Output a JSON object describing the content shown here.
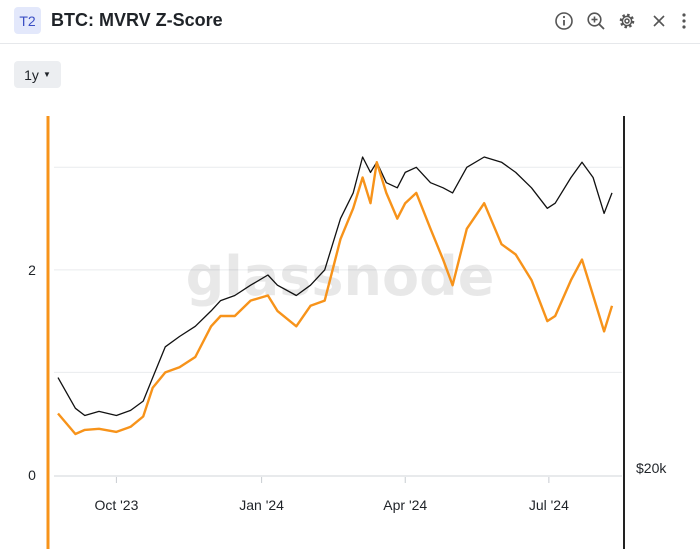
{
  "header": {
    "badge": "T2",
    "title": "BTC: MVRV Z-Score",
    "icons": [
      "info-icon",
      "zoom-in-icon",
      "gear-icon",
      "close-icon",
      "more-vertical-icon"
    ]
  },
  "range": {
    "label": "1y"
  },
  "watermark": "glassnode",
  "colors": {
    "zscore": "#f7931a",
    "price": "#111111",
    "grid": "#e9ebee",
    "axis": "#222222"
  },
  "chart_data": {
    "type": "line",
    "x_ticks": [
      "Oct '23",
      "Jan '24",
      "Apr '24",
      "Jul '24"
    ],
    "y_left_ticks": [
      "0",
      "2"
    ],
    "y_right_ticks": [
      "$20k"
    ],
    "ylim_left": [
      0,
      3.5
    ],
    "series": [
      {
        "axis": "left",
        "color": "#f7931a",
        "x": [
          "2023-08-25",
          "2023-09-05",
          "2023-09-11",
          "2023-09-20",
          "2023-10-01",
          "2023-10-10",
          "2023-10-18",
          "2023-10-24",
          "2023-11-01",
          "2023-11-10",
          "2023-11-20",
          "2023-11-30",
          "2023-12-06",
          "2023-12-15",
          "2023-12-25",
          "2024-01-05",
          "2024-01-11",
          "2024-01-23",
          "2024-02-01",
          "2024-02-10",
          "2024-02-20",
          "2024-02-28",
          "2024-03-05",
          "2024-03-10",
          "2024-03-14",
          "2024-03-20",
          "2024-03-27",
          "2024-04-01",
          "2024-04-08",
          "2024-04-17",
          "2024-04-25",
          "2024-05-01",
          "2024-05-10",
          "2024-05-21",
          "2024-06-01",
          "2024-06-10",
          "2024-06-20",
          "2024-06-30",
          "2024-07-05",
          "2024-07-15",
          "2024-07-22",
          "2024-07-29",
          "2024-08-05",
          "2024-08-10"
        ],
        "y": [
          0.6,
          0.4,
          0.44,
          0.45,
          0.42,
          0.47,
          0.57,
          0.85,
          1.0,
          1.05,
          1.15,
          1.45,
          1.55,
          1.55,
          1.7,
          1.75,
          1.6,
          1.45,
          1.65,
          1.7,
          2.3,
          2.6,
          2.9,
          2.65,
          3.05,
          2.75,
          2.5,
          2.65,
          2.75,
          2.4,
          2.1,
          1.85,
          2.4,
          2.65,
          2.25,
          2.15,
          1.9,
          1.5,
          1.55,
          1.9,
          2.1,
          1.75,
          1.4,
          1.65
        ]
      },
      {
        "axis": "right",
        "color": "#111111",
        "x": [
          "2023-08-25",
          "2023-09-05",
          "2023-09-11",
          "2023-09-20",
          "2023-10-01",
          "2023-10-10",
          "2023-10-18",
          "2023-10-24",
          "2023-11-01",
          "2023-11-10",
          "2023-11-20",
          "2023-11-30",
          "2023-12-06",
          "2023-12-15",
          "2023-12-25",
          "2024-01-05",
          "2024-01-11",
          "2024-01-23",
          "2024-02-01",
          "2024-02-10",
          "2024-02-20",
          "2024-02-28",
          "2024-03-05",
          "2024-03-10",
          "2024-03-14",
          "2024-03-20",
          "2024-03-27",
          "2024-04-01",
          "2024-04-08",
          "2024-04-17",
          "2024-04-25",
          "2024-05-01",
          "2024-05-10",
          "2024-05-21",
          "2024-06-01",
          "2024-06-10",
          "2024-06-20",
          "2024-06-30",
          "2024-07-05",
          "2024-07-15",
          "2024-07-22",
          "2024-07-29",
          "2024-08-05",
          "2024-08-10"
        ],
        "y": [
          0.95,
          0.65,
          0.58,
          0.62,
          0.58,
          0.63,
          0.72,
          0.95,
          1.25,
          1.35,
          1.45,
          1.6,
          1.7,
          1.75,
          1.85,
          1.95,
          1.85,
          1.75,
          1.85,
          2.0,
          2.5,
          2.75,
          3.1,
          2.95,
          3.05,
          2.85,
          2.8,
          2.95,
          3.0,
          2.85,
          2.8,
          2.75,
          3.0,
          3.1,
          3.05,
          2.95,
          2.8,
          2.6,
          2.65,
          2.9,
          3.05,
          2.9,
          2.55,
          2.75
        ]
      }
    ],
    "legend": "none",
    "grid": true
  }
}
